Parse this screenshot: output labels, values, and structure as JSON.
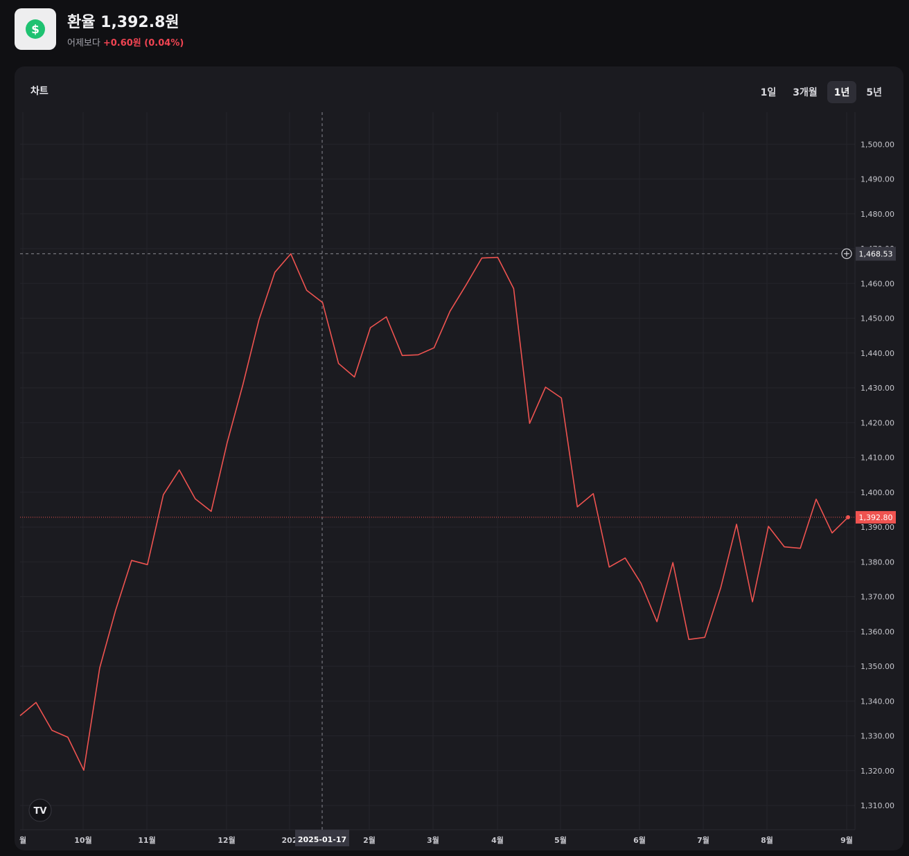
{
  "header": {
    "icon": "dollar-icon",
    "icon_color": "#1fc271",
    "title": "환율 1,392.8원",
    "change_prefix": "어제보다",
    "change_value": "+0.60원 (0.04%)",
    "change_color": "#f04452"
  },
  "card": {
    "title": "차트",
    "tabs": [
      {
        "label": "1일",
        "active": false
      },
      {
        "label": "3개월",
        "active": false
      },
      {
        "label": "1년",
        "active": true
      },
      {
        "label": "5년",
        "active": false
      }
    ]
  },
  "crosshair": {
    "date_label": "2025-01-17",
    "price_label": "1,468.53",
    "plus_icon": "plus-circle-icon"
  },
  "last_price_label": "1,392.80",
  "logo_badge": "tradingview-logo-icon",
  "chart_data": {
    "type": "line",
    "series": [
      {
        "color": "#ef5350",
        "values": [
          1335.8,
          1339.6,
          1331.6,
          1329.6,
          1320.1,
          1349.5,
          1366.1,
          1380.4,
          1379.2,
          1399.3,
          1406.4,
          1398.1,
          1394.5,
          1414.2,
          1431.0,
          1449.5,
          1463.2,
          1468.5,
          1458.0,
          1454.5,
          1437.0,
          1433.1,
          1447.3,
          1450.4,
          1439.3,
          1439.5,
          1441.5,
          1452.0,
          1459.5,
          1467.3,
          1467.5,
          1458.5,
          1419.8,
          1430.2,
          1427.1,
          1395.8,
          1399.6,
          1378.5,
          1381.1,
          1373.8,
          1362.8,
          1379.8,
          1357.7,
          1358.3,
          1372.5,
          1390.8,
          1368.5,
          1390.2,
          1384.3,
          1383.9,
          1398.0,
          1388.3,
          1392.8
        ]
      }
    ],
    "x_labels": [
      "월",
      "10월",
      "11월",
      "12월",
      "202",
      "2월",
      "3월",
      "4월",
      "5월",
      "6월",
      "7월",
      "8월",
      "9월"
    ],
    "y_ticks": [
      "1,310.00",
      "1,320.00",
      "1,330.00",
      "1,340.00",
      "1,350.00",
      "1,360.00",
      "1,370.00",
      "1,380.00",
      "1,390.00",
      "1,400.00",
      "1,410.00",
      "1,420.00",
      "1,430.00",
      "1,440.00",
      "1,450.00",
      "1,460.00",
      "1,470.00",
      "1,480.00",
      "1,490.00",
      "1,500.00"
    ],
    "ylim": [
      1305,
      1508
    ],
    "grid": true,
    "crosshair_value": 1468.53,
    "last_value": 1392.8
  }
}
